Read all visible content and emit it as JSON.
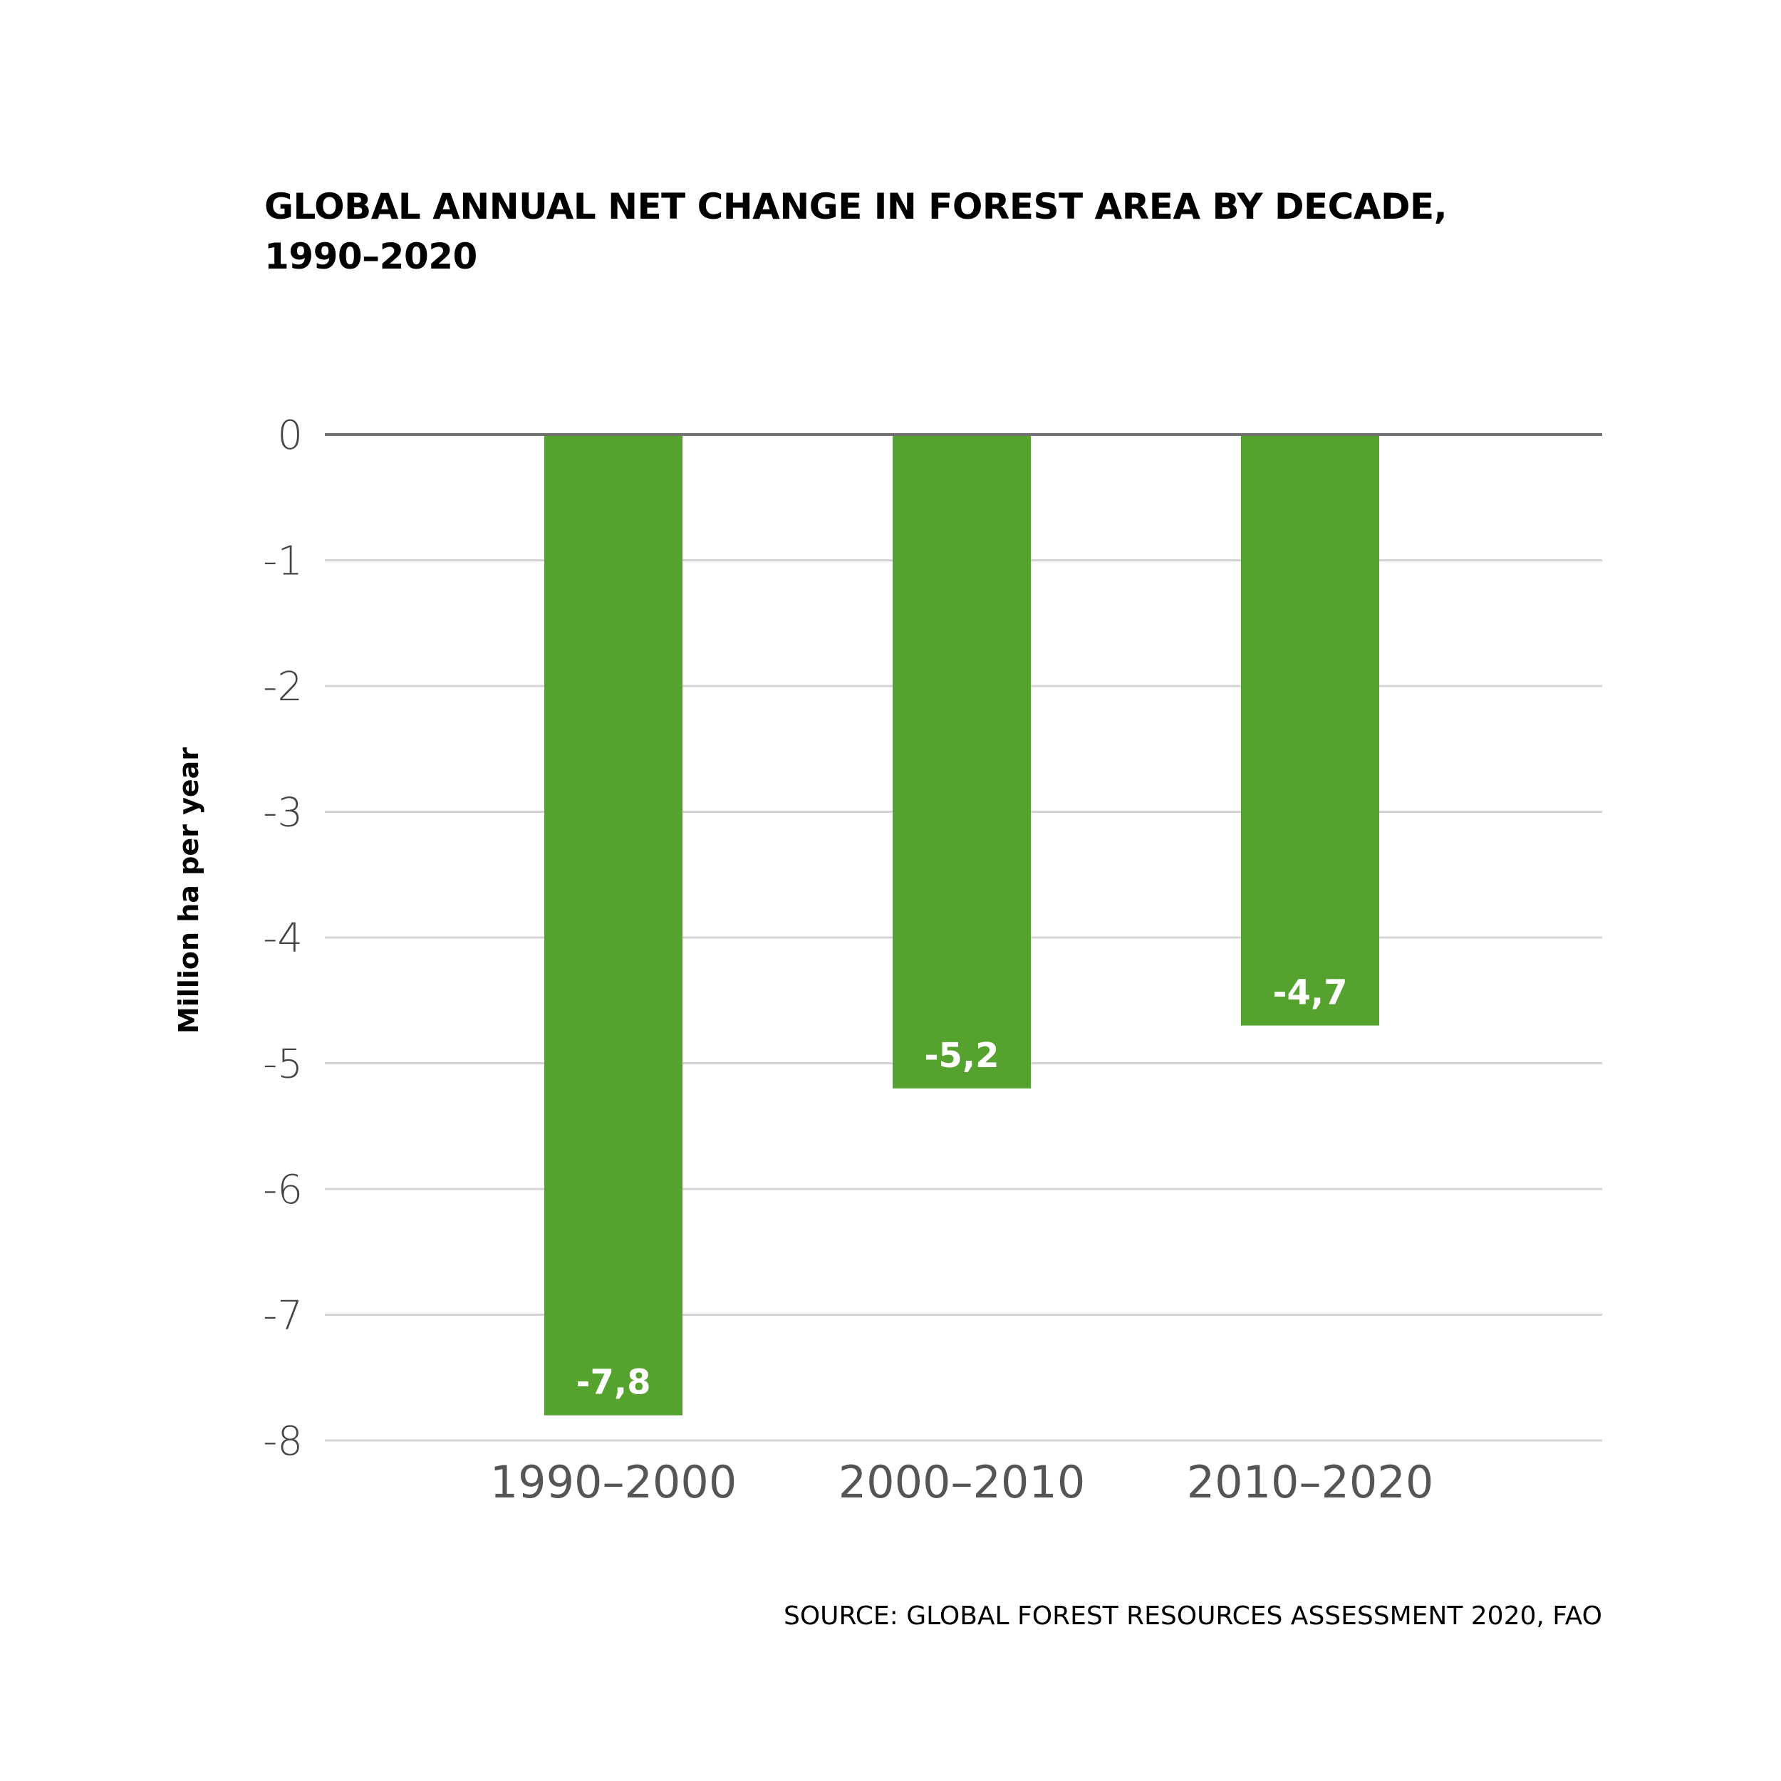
{
  "colors": {
    "bar": "#55a22f",
    "grid": "#d4d4d4",
    "zero_line": "#707070",
    "bar_label": "#ffffff"
  },
  "chart_data": {
    "type": "bar",
    "title": "GLOBAL ANNUAL NET CHANGE IN FOREST AREA BY DECADE, 1990–2020",
    "title_lines": [
      "GLOBAL ANNUAL NET CHANGE IN FOREST AREA BY DECADE,",
      "1990–2020"
    ],
    "xlabel": "",
    "ylabel": "Million ha per year",
    "categories": [
      "1990–2000",
      "2000–2010",
      "2010–2020"
    ],
    "values": [
      -7.8,
      -5.2,
      -4.7
    ],
    "value_labels": [
      "-7,8",
      "-5,2",
      "-4,7"
    ],
    "ylim": [
      -8,
      0
    ],
    "yticks": [
      0,
      -1,
      -2,
      -3,
      -4,
      -5,
      -6,
      -7,
      -8
    ],
    "ytick_labels": [
      "0",
      "-1",
      "-2",
      "-3",
      "-4",
      "-5",
      "-6",
      "-7",
      "-8"
    ],
    "grid": true,
    "legend": "none",
    "source": "SOURCE: GLOBAL FOREST RESOURCES ASSESSMENT 2020, FAO"
  }
}
